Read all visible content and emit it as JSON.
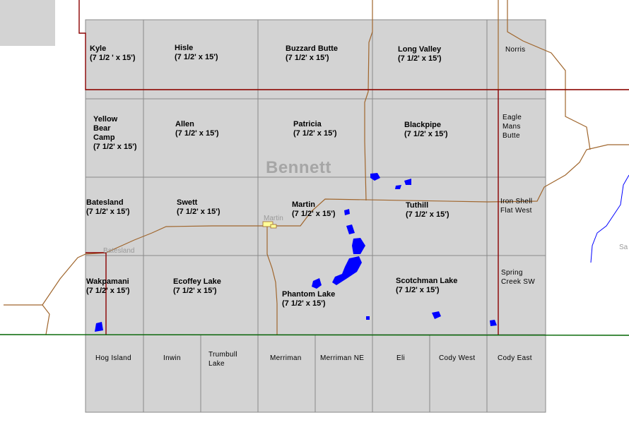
{
  "map": {
    "county_label": "Bennett",
    "colors": {
      "quad_fill": "#d3d3d3",
      "quad_border": "#8a8a8a",
      "road": "#a0662d",
      "boundary": "#8b0000",
      "state_line": "#006400",
      "water": "#0000ff",
      "town_marker": "#ffff99"
    },
    "quads_15min": [
      {
        "name": "Kyle",
        "scale": "(7 1/2 ' x 15')"
      },
      {
        "name": "Hisle",
        "scale": "(7 1/2' x 15')"
      },
      {
        "name": "Buzzard Butte",
        "scale": "(7 1/2' x 15')"
      },
      {
        "name": "Long Valley",
        "scale": "(7 1/2' x 15')"
      },
      {
        "name": "Yellow\nBear\nCamp",
        "scale": "(7 1/2' x 15')"
      },
      {
        "name": "Allen",
        "scale": "(7 1/2' x 15')"
      },
      {
        "name": "Patricia",
        "scale": "(7 1/2' x 15')"
      },
      {
        "name": "Blackpipe",
        "scale": "(7 1/2' x 15')"
      },
      {
        "name": "Batesland",
        "scale": "(7 1/2' x 15')"
      },
      {
        "name": "Swett",
        "scale": "(7 1/2' x 15')"
      },
      {
        "name": "Martin",
        "scale": "(7 1/2' x 15')"
      },
      {
        "name": "Tuthill",
        "scale": "(7 1/2' x 15')"
      },
      {
        "name": "Wakpamani",
        "scale": "(7 1/2' x 15')"
      },
      {
        "name": "Ecoffey Lake",
        "scale": "(7 1/2' x 15')"
      },
      {
        "name": "Phantom Lake",
        "scale": "(7 1/2' x 15')"
      },
      {
        "name": "Scotchman Lake",
        "scale": "(7 1/2' x 15')"
      }
    ],
    "east_quads": [
      "Norris",
      "Eagle\nMans\nButte",
      "Iron Shell\nFlat West",
      "Spring\nCreek SW"
    ],
    "south_quads": [
      "Hog Island",
      "Inwin",
      "Trumbull\nLake",
      "Merriman",
      "Merriman NE",
      "Eli",
      "Cody West",
      "Cody East"
    ],
    "towns": [
      "Martin",
      "Batesland"
    ],
    "edge_text": "Sa"
  }
}
